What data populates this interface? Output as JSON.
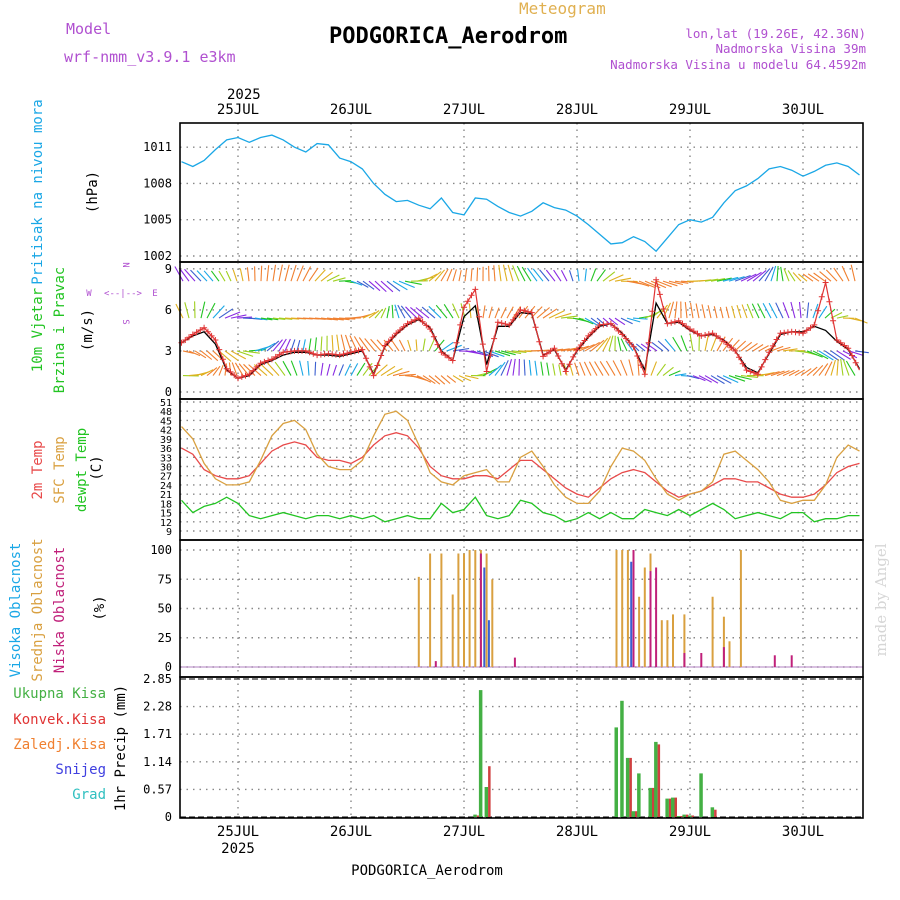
{
  "header": {
    "model_label": "Model",
    "model_name": "wrf-nmm_v3.9.1 e3km",
    "title": "PODGORICA_Aerodrom",
    "subtitle": "Meteogram",
    "lonlat": "lon,lat (19.26E, 42.36N)",
    "elevation": "Nadmorska Visina 39m",
    "model_elevation": "Nadmorska Visina u modelu 64.4592m"
  },
  "footer": {
    "station": "PODGORICA_Aerodrom"
  },
  "watermark": "made by Angel",
  "colors": {
    "pressure": "#1aa7e6",
    "wind_speed": "#e03434",
    "wind_speed_smooth": "#000000",
    "temp2m": "#e84a4a",
    "temp_sfc": "#d9a040",
    "dewpoint": "#22c422",
    "cloud_high": "#3b5fd0",
    "cloud_mid": "#d9a040",
    "cloud_low": "#c0207a",
    "precip_total": "#44b044",
    "precip_conv": "#d04040"
  },
  "chart_data": [
    {
      "type": "line",
      "panel": "pressure",
      "title": "Pritisak na nivou mora",
      "ylabel": "(hPa)",
      "yticks": [
        "1002",
        "1005",
        "1008",
        "1011"
      ],
      "ylim": [
        1002,
        1013
      ],
      "x_unit": "days since 25JUL 00UTC",
      "x": [
        -0.5,
        -0.4,
        -0.3,
        -0.2,
        -0.1,
        0,
        0.1,
        0.2,
        0.3,
        0.4,
        0.5,
        0.6,
        0.7,
        0.8,
        0.9,
        1.0,
        1.1,
        1.2,
        1.3,
        1.4,
        1.5,
        1.6,
        1.7,
        1.8,
        1.9,
        2.0,
        2.1,
        2.2,
        2.3,
        2.4,
        2.5,
        2.6,
        2.7,
        2.8,
        2.9,
        3.0,
        3.1,
        3.2,
        3.3,
        3.4,
        3.5,
        3.6,
        3.7,
        3.8,
        3.9,
        4.0,
        4.1,
        4.2,
        4.3,
        4.4,
        4.5,
        4.6,
        4.7,
        4.8,
        4.9,
        5.0,
        5.1,
        5.2,
        5.3,
        5.4,
        5.5
      ],
      "series": [
        {
          "name": "MSLP",
          "values": [
            1009.8,
            1009.4,
            1009.9,
            1010.8,
            1011.6,
            1011.8,
            1011.4,
            1011.8,
            1012.0,
            1011.6,
            1011.0,
            1010.6,
            1011.3,
            1011.2,
            1010.1,
            1009.8,
            1009.2,
            1008.0,
            1007.1,
            1006.5,
            1006.6,
            1006.2,
            1005.9,
            1006.8,
            1005.6,
            1005.4,
            1006.8,
            1006.7,
            1006.1,
            1005.6,
            1005.3,
            1005.7,
            1006.4,
            1006.0,
            1005.8,
            1005.3,
            1004.6,
            1003.8,
            1003.0,
            1003.1,
            1003.6,
            1003.2,
            1002.4,
            1003.5,
            1004.6,
            1005.0,
            1004.8,
            1005.2,
            1006.4,
            1007.4,
            1007.8,
            1008.4,
            1009.2,
            1009.4,
            1009.1,
            1008.6,
            1009.0,
            1009.5,
            1009.7,
            1009.4,
            1008.7
          ]
        }
      ]
    },
    {
      "type": "line",
      "panel": "wind",
      "title": "10m Vjetar Brzina i Pravac",
      "ylabel": "(m/s)",
      "yticks": [
        "0",
        "3",
        "6",
        "9"
      ],
      "ylim": [
        0,
        9.5
      ],
      "compass": [
        "N",
        "W",
        "E",
        "S"
      ],
      "x": [
        -0.5,
        -0.4,
        -0.3,
        -0.2,
        -0.1,
        0,
        0.1,
        0.2,
        0.3,
        0.4,
        0.5,
        0.6,
        0.7,
        0.8,
        0.9,
        1.0,
        1.1,
        1.2,
        1.3,
        1.4,
        1.5,
        1.6,
        1.7,
        1.8,
        1.9,
        2.0,
        2.1,
        2.2,
        2.3,
        2.4,
        2.5,
        2.6,
        2.7,
        2.8,
        2.9,
        3.0,
        3.1,
        3.2,
        3.3,
        3.4,
        3.5,
        3.6,
        3.7,
        3.8,
        3.9,
        4.0,
        4.1,
        4.2,
        4.3,
        4.4,
        4.5,
        4.6,
        4.7,
        4.8,
        4.9,
        5.0,
        5.1,
        5.2,
        5.3,
        5.4,
        5.5
      ],
      "series": [
        {
          "name": "speed_raw",
          "values": [
            3.6,
            4.2,
            4.7,
            3.8,
            1.7,
            1.0,
            1.3,
            2.1,
            2.4,
            2.9,
            3.0,
            3.0,
            2.7,
            2.8,
            2.7,
            2.9,
            3.1,
            1.2,
            3.4,
            4.3,
            5.0,
            5.4,
            4.6,
            2.9,
            2.3,
            6.2,
            7.5,
            1.5,
            5.1,
            4.9,
            6.0,
            5.8,
            2.6,
            3.2,
            1.5,
            3.1,
            4.1,
            4.9,
            5.0,
            4.2,
            3.3,
            1.3,
            8.2,
            5.0,
            5.2,
            4.6,
            4.1,
            4.3,
            3.7,
            3.0,
            1.6,
            1.3,
            2.9,
            4.3,
            4.4,
            4.3,
            4.9,
            8.0,
            3.8,
            3.2,
            1.6
          ]
        },
        {
          "name": "speed_smooth",
          "values": [
            3.6,
            4.1,
            4.4,
            3.5,
            1.6,
            1.0,
            1.2,
            2.0,
            2.3,
            2.7,
            2.9,
            2.9,
            2.7,
            2.7,
            2.6,
            2.8,
            3.0,
            1.3,
            3.3,
            4.2,
            4.9,
            5.3,
            4.7,
            3.0,
            2.3,
            5.5,
            6.3,
            2.0,
            4.8,
            4.8,
            5.8,
            5.7,
            2.7,
            3.1,
            1.6,
            3.0,
            4.0,
            4.8,
            5.0,
            4.3,
            3.3,
            1.6,
            6.5,
            5.0,
            5.1,
            4.5,
            4.1,
            4.2,
            3.8,
            3.0,
            1.8,
            1.4,
            2.8,
            4.2,
            4.4,
            4.4,
            4.8,
            4.5,
            3.7,
            3.1,
            1.7
          ]
        }
      ]
    },
    {
      "type": "line",
      "panel": "temperature",
      "title": "2m Temp / SFC Temp / dewpt Temp",
      "ylabel": "(C)",
      "yticks": [
        "9",
        "12",
        "15",
        "18",
        "21",
        "24",
        "27",
        "30",
        "33",
        "36",
        "39",
        "42",
        "45",
        "48",
        "51"
      ],
      "ylim": [
        9,
        51
      ],
      "x": [
        -0.5,
        -0.4,
        -0.3,
        -0.2,
        -0.1,
        0,
        0.1,
        0.2,
        0.3,
        0.4,
        0.5,
        0.6,
        0.7,
        0.8,
        0.9,
        1.0,
        1.1,
        1.2,
        1.3,
        1.4,
        1.5,
        1.6,
        1.7,
        1.8,
        1.9,
        2.0,
        2.1,
        2.2,
        2.3,
        2.4,
        2.5,
        2.6,
        2.7,
        2.8,
        2.9,
        3.0,
        3.1,
        3.2,
        3.3,
        3.4,
        3.5,
        3.6,
        3.7,
        3.8,
        3.9,
        4.0,
        4.1,
        4.2,
        4.3,
        4.4,
        4.5,
        4.6,
        4.7,
        4.8,
        4.9,
        5.0,
        5.1,
        5.2,
        5.3,
        5.4,
        5.5
      ],
      "series": [
        {
          "name": "2m Temp",
          "values": [
            36,
            34,
            29,
            27,
            26,
            26,
            27,
            31,
            35,
            37,
            38,
            37,
            33,
            32,
            32,
            31,
            33,
            37,
            40,
            41,
            40,
            36,
            30,
            27,
            26,
            26,
            27,
            27,
            26,
            29,
            32,
            32,
            29,
            26,
            23,
            21,
            20,
            23,
            26,
            28,
            29,
            28,
            25,
            22,
            20,
            21,
            22,
            24,
            26,
            26,
            25,
            25,
            23,
            21,
            20,
            20,
            21,
            24,
            28,
            30,
            31
          ]
        },
        {
          "name": "SFC Temp",
          "values": [
            43,
            39,
            31,
            26,
            24,
            24,
            25,
            32,
            40,
            44,
            45,
            42,
            34,
            30,
            29,
            29,
            32,
            40,
            47,
            48,
            45,
            37,
            28,
            25,
            24,
            27,
            28,
            29,
            25,
            25,
            33,
            35,
            30,
            24,
            20,
            18,
            18,
            22,
            30,
            36,
            35,
            32,
            26,
            21,
            19,
            21,
            22,
            25,
            34,
            35,
            32,
            29,
            25,
            19,
            18,
            19,
            19,
            24,
            33,
            37,
            35
          ]
        },
        {
          "name": "dewpt Temp",
          "values": [
            19,
            15,
            17,
            18,
            20,
            18,
            14,
            13,
            14,
            15,
            14,
            13,
            14,
            14,
            13,
            14,
            13,
            14,
            12,
            13,
            14,
            13,
            13,
            18,
            15,
            16,
            20,
            14,
            13,
            14,
            19,
            18,
            15,
            14,
            12,
            13,
            15,
            13,
            15,
            13,
            13,
            16,
            15,
            14,
            16,
            14,
            16,
            18,
            16,
            13,
            14,
            15,
            14,
            13,
            15,
            15,
            12,
            13,
            13,
            14,
            14
          ]
        }
      ]
    },
    {
      "type": "bar",
      "panel": "clouds",
      "title": "Visoka / Srednja / Niska Oblacnost",
      "ylabel": "(%)",
      "yticks": [
        "0",
        "25",
        "50",
        "75",
        "100"
      ],
      "ylim": [
        0,
        105
      ],
      "series": [
        {
          "name": "Srednja Oblacnost",
          "x": [
            1.6,
            1.7,
            1.8,
            1.9,
            1.95,
            2.0,
            2.05,
            2.1,
            2.15,
            2.2,
            2.25,
            3.35,
            3.4,
            3.45,
            3.5,
            3.55,
            3.6,
            3.65,
            3.75,
            3.8,
            3.85,
            3.95,
            4.2,
            4.3,
            4.35,
            4.45
          ],
          "values": [
            77,
            97,
            97,
            62,
            97,
            97,
            100,
            100,
            100,
            97,
            75,
            100,
            100,
            100,
            90,
            60,
            85,
            97,
            40,
            40,
            45,
            45,
            60,
            43,
            22,
            100
          ]
        },
        {
          "name": "Niska Oblacnost",
          "x": [
            1.75,
            2.15,
            2.45,
            3.5,
            3.65,
            3.7,
            3.95,
            4.1,
            4.3,
            4.75,
            4.9
          ],
          "values": [
            5,
            97,
            8,
            100,
            82,
            85,
            12,
            12,
            17,
            10,
            10
          ]
        },
        {
          "name": "Visoka Oblacnost",
          "x": [
            2.18,
            2.22,
            3.48
          ],
          "values": [
            85,
            40,
            90
          ]
        }
      ]
    },
    {
      "type": "bar",
      "panel": "precip",
      "title": "1hr Precip",
      "ylabel": "(mm)",
      "legend": [
        "Ukupna Kisa",
        "Konvek.Kisa",
        "Zaledj.Kisa",
        "Snijeg",
        "Grad"
      ],
      "yticks": [
        "0",
        "0.57",
        "1.14",
        "1.71",
        "2.28",
        "2.85"
      ],
      "ylim": [
        0,
        2.85
      ],
      "x": [
        2.1,
        2.15,
        2.2,
        3.35,
        3.4,
        3.45,
        3.5,
        3.55,
        3.65,
        3.7,
        3.8,
        3.85,
        3.9,
        3.95,
        4.0,
        4.1,
        4.2
      ],
      "series": [
        {
          "name": "Ukupna Kisa",
          "values": [
            0.05,
            2.62,
            0.62,
            1.85,
            2.4,
            1.22,
            0.12,
            0.9,
            0.6,
            1.55,
            0.38,
            0.4,
            0.02,
            0.05,
            0.03,
            0.9,
            0.2
          ]
        },
        {
          "name": "Konvek.Kisa",
          "values": [
            0.03,
            0.0,
            1.05,
            0.0,
            0.0,
            1.22,
            0.12,
            0.0,
            0.6,
            1.5,
            0.38,
            0.4,
            0.02,
            0.05,
            0.03,
            0.0,
            0.15
          ]
        }
      ]
    }
  ],
  "x_axis": {
    "dates": [
      "25JUL",
      "26JUL",
      "27JUL",
      "28JUL",
      "29JUL",
      "30JUL"
    ],
    "year": "2025"
  }
}
